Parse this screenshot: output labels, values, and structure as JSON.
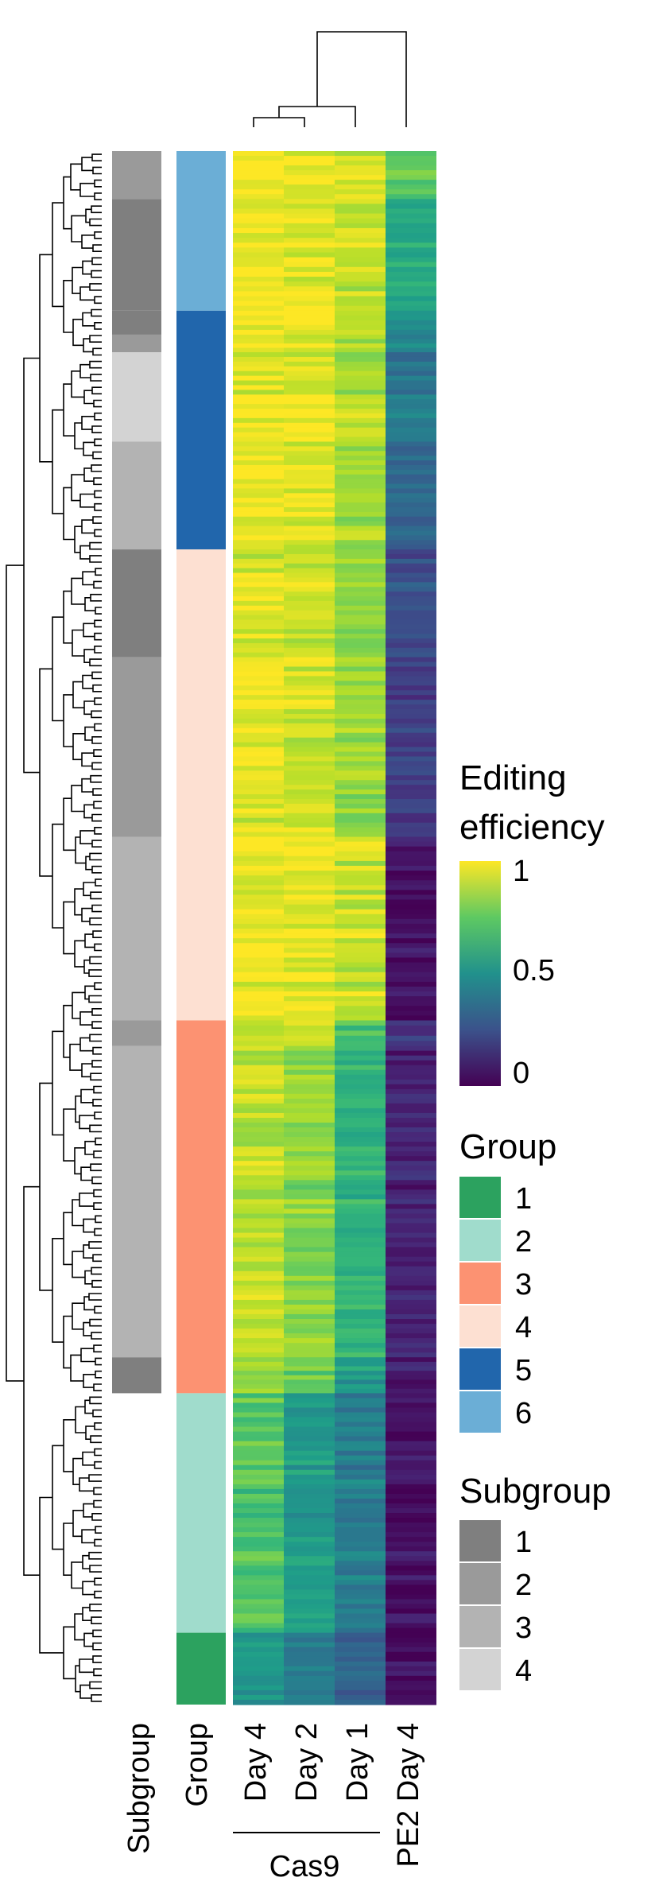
{
  "chart_data": {
    "type": "heatmap",
    "title": "",
    "columns": [
      "Day 4",
      "Day 2",
      "Day 1",
      "PE2 Day 4"
    ],
    "column_group": {
      "label": "Cas9",
      "members": [
        "Day 4",
        "Day 2",
        "Day 1"
      ]
    },
    "annotation_columns": [
      "Subgroup",
      "Group"
    ],
    "blocks": [
      {
        "rows": 60,
        "group": "6",
        "subgroup": "2",
        "values": [
          0.98,
          0.97,
          0.93,
          0.74
        ]
      },
      {
        "rows": 140,
        "group": "6",
        "subgroup": "1",
        "values": [
          0.97,
          0.96,
          0.91,
          0.6
        ]
      },
      {
        "rows": 30,
        "group": "5",
        "subgroup": "1",
        "values": [
          0.97,
          0.96,
          0.9,
          0.5
        ]
      },
      {
        "rows": 22,
        "group": "5",
        "subgroup": "2",
        "values": [
          0.96,
          0.95,
          0.88,
          0.45
        ]
      },
      {
        "rows": 112,
        "group": "5",
        "subgroup": "4",
        "values": [
          0.97,
          0.96,
          0.88,
          0.4
        ]
      },
      {
        "rows": 135,
        "group": "5",
        "subgroup": "3",
        "values": [
          0.96,
          0.94,
          0.86,
          0.33
        ]
      },
      {
        "rows": 135,
        "group": "4",
        "subgroup": "1",
        "values": [
          0.95,
          0.93,
          0.82,
          0.25
        ]
      },
      {
        "rows": 225,
        "group": "4",
        "subgroup": "2",
        "values": [
          0.95,
          0.93,
          0.85,
          0.18
        ]
      },
      {
        "rows": 230,
        "group": "4",
        "subgroup": "3",
        "values": [
          0.98,
          0.97,
          0.92,
          0.04
        ]
      },
      {
        "rows": 32,
        "group": "3",
        "subgroup": "2",
        "values": [
          0.93,
          0.9,
          0.7,
          0.15
        ]
      },
      {
        "rows": 390,
        "group": "3",
        "subgroup": "3",
        "values": [
          0.9,
          0.82,
          0.64,
          0.1
        ]
      },
      {
        "rows": 45,
        "group": "3",
        "subgroup": "1",
        "values": [
          0.86,
          0.76,
          0.55,
          0.07
        ]
      },
      {
        "rows": 300,
        "group": "2",
        "subgroup": "",
        "values": [
          0.72,
          0.55,
          0.42,
          0.04
        ]
      },
      {
        "rows": 90,
        "group": "1",
        "subgroup": "",
        "values": [
          0.52,
          0.4,
          0.32,
          0.02
        ]
      }
    ],
    "color_scale": {
      "title": [
        "Editing",
        "efficiency"
      ],
      "min": 0,
      "max": 1,
      "ticks": [
        "1",
        "0.5",
        "0"
      ]
    },
    "group_legend": {
      "title": "Group",
      "items": [
        {
          "label": "1",
          "color": "#2ca25f"
        },
        {
          "label": "2",
          "color": "#a0dccc"
        },
        {
          "label": "3",
          "color": "#fc9272"
        },
        {
          "label": "4",
          "color": "#fde0d2"
        },
        {
          "label": "5",
          "color": "#2166ac"
        },
        {
          "label": "6",
          "color": "#6baed6"
        }
      ]
    },
    "subgroup_legend": {
      "title": "Subgroup",
      "items": [
        {
          "label": "1",
          "color": "#7f7f7f"
        },
        {
          "label": "2",
          "color": "#9a9a9a"
        },
        {
          "label": "3",
          "color": "#b3b3b3"
        },
        {
          "label": "4",
          "color": "#d3d3d3"
        }
      ]
    }
  }
}
